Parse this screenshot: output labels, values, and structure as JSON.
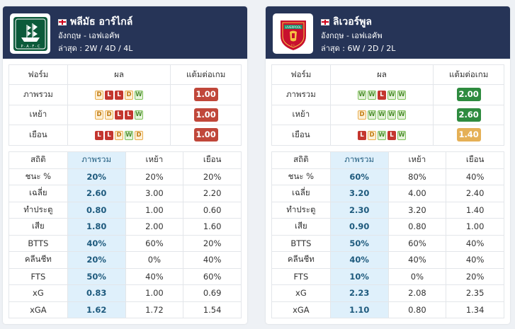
{
  "colors": {
    "header_bg": "#263457",
    "win": "#7fbf5a",
    "draw": "#e8ad4d",
    "loss": "#c4362f",
    "ppg_red": "#c0473a",
    "ppg_green": "#2e8b3f",
    "ppg_amber": "#e5b056",
    "highlight_col": "#dff0fb"
  },
  "teams": [
    {
      "crest_icon": "plymouth-argyle-crest-icon",
      "flag_icon": "england-flag-icon",
      "name": "พลีมัธ อาร์ไกล์",
      "league": "อังกฤษ - เอฟเอคัพ",
      "recent": "ล่าสุด : 2W / 4D / 4L",
      "form_headers": [
        "ฟอร์ม",
        "ผล",
        "แต้มต่อเกม"
      ],
      "form_rows": [
        {
          "label": "ภาพรวม",
          "results": [
            "D",
            "L",
            "L",
            "D",
            "W"
          ],
          "ppg": "1.00",
          "ppg_color": "#c0473a"
        },
        {
          "label": "เหย้า",
          "results": [
            "D",
            "D",
            "L",
            "L",
            "W"
          ],
          "ppg": "1.00",
          "ppg_color": "#c0473a"
        },
        {
          "label": "เยือน",
          "results": [
            "L",
            "L",
            "D",
            "W",
            "D"
          ],
          "ppg": "1.00",
          "ppg_color": "#c0473a"
        }
      ],
      "stat_headers": [
        "สถิติ",
        "ภาพรวม",
        "เหย้า",
        "เยือน"
      ],
      "stat_rows": [
        [
          "ชนะ %",
          "20%",
          "20%",
          "20%"
        ],
        [
          "เฉลี่ย",
          "2.60",
          "3.00",
          "2.20"
        ],
        [
          "ทำประตู",
          "0.80",
          "1.00",
          "0.60"
        ],
        [
          "เสีย",
          "1.80",
          "2.00",
          "1.60"
        ],
        [
          "BTTS",
          "40%",
          "60%",
          "20%"
        ],
        [
          "คลีนชีท",
          "20%",
          "0%",
          "40%"
        ],
        [
          "FTS",
          "50%",
          "40%",
          "60%"
        ],
        [
          "xG",
          "0.83",
          "1.00",
          "0.69"
        ],
        [
          "xGA",
          "1.62",
          "1.72",
          "1.54"
        ]
      ]
    },
    {
      "crest_icon": "liverpool-crest-icon",
      "flag_icon": "england-flag-icon",
      "name": "ลิเวอร์พูล",
      "league": "อังกฤษ - เอฟเอคัพ",
      "recent": "ล่าสุด : 6W / 2D / 2L",
      "form_headers": [
        "ฟอร์ม",
        "ผล",
        "แต้มต่อเกม"
      ],
      "form_rows": [
        {
          "label": "ภาพรวม",
          "results": [
            "W",
            "W",
            "L",
            "W",
            "W"
          ],
          "ppg": "2.00",
          "ppg_color": "#2e8b3f"
        },
        {
          "label": "เหย้า",
          "results": [
            "D",
            "W",
            "W",
            "W",
            "W"
          ],
          "ppg": "2.60",
          "ppg_color": "#2e8b3f"
        },
        {
          "label": "เยือน",
          "results": [
            "L",
            "D",
            "W",
            "L",
            "W"
          ],
          "ppg": "1.40",
          "ppg_color": "#e5b056"
        }
      ],
      "stat_headers": [
        "สถิติ",
        "ภาพรวม",
        "เหย้า",
        "เยือน"
      ],
      "stat_rows": [
        [
          "ชนะ %",
          "60%",
          "80%",
          "40%"
        ],
        [
          "เฉลี่ย",
          "3.20",
          "4.00",
          "2.40"
        ],
        [
          "ทำประตู",
          "2.30",
          "3.20",
          "1.40"
        ],
        [
          "เสีย",
          "0.90",
          "0.80",
          "1.00"
        ],
        [
          "BTTS",
          "50%",
          "60%",
          "40%"
        ],
        [
          "คลีนชีท",
          "40%",
          "40%",
          "40%"
        ],
        [
          "FTS",
          "10%",
          "0%",
          "20%"
        ],
        [
          "xG",
          "2.23",
          "2.08",
          "2.35"
        ],
        [
          "xGA",
          "1.10",
          "0.80",
          "1.34"
        ]
      ]
    }
  ]
}
